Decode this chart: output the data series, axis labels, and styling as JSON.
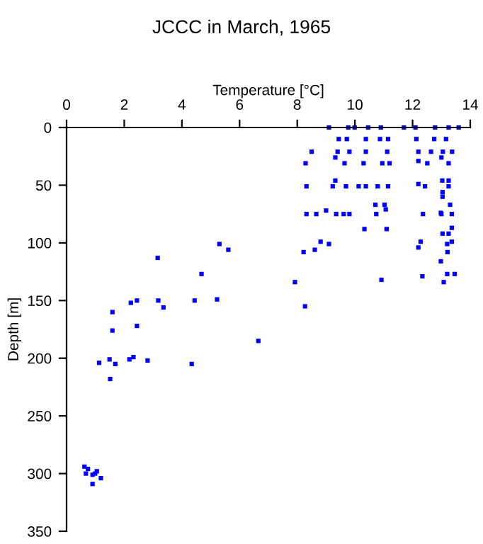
{
  "chart_data": {
    "type": "scatter",
    "title": "JCCC in March, 1965",
    "xlabel": "Temperature [°C]",
    "ylabel": "Depth [m]",
    "xlim": [
      0,
      14
    ],
    "xticks": [
      0,
      2,
      4,
      6,
      8,
      10,
      12,
      14
    ],
    "ylim": [
      350,
      0
    ],
    "yticks": [
      0,
      50,
      100,
      150,
      200,
      250,
      300,
      350
    ],
    "grid": false,
    "marker": "square",
    "series": [
      {
        "color": "#0000ff",
        "x": [
          9.1,
          9.77,
          9.99,
          10.46,
          10.9,
          11.7,
          12.1,
          12.78,
          13.25,
          13.6,
          9.44,
          9.72,
          10.38,
          10.87,
          11.15,
          12.13,
          12.75,
          13.16,
          8.5,
          9.4,
          9.81,
          10.38,
          11.12,
          12.2,
          12.64,
          13.05,
          13.37,
          9.32,
          13.0,
          8.29,
          9.64,
          10.3,
          10.95,
          11.2,
          12.2,
          12.51,
          13.25,
          9.32,
          13.03,
          13.25,
          8.32,
          9.23,
          9.69,
          10.13,
          10.38,
          10.79,
          11.15,
          12.43,
          13.25,
          12.2,
          13.04,
          13.04,
          10.71,
          13.3,
          11.03,
          11.07,
          9.0,
          12.98,
          8.32,
          8.66,
          9.35,
          9.61,
          9.81,
          10.74,
          12.36,
          13.0,
          13.36,
          10.33,
          11.1,
          13.36,
          13.04,
          13.25,
          8.81,
          9.1,
          12.28,
          13.36,
          13.2,
          12.2,
          8.61,
          8.22,
          13.21,
          12.98,
          13.2,
          13.46,
          12.34,
          10.92,
          7.92,
          13.08,
          5.3,
          5.61,
          3.16,
          4.68,
          8.27,
          1.59,
          2.23,
          2.44,
          3.18,
          3.36,
          4.44,
          5.22,
          1.59,
          2.44,
          6.65,
          1.49,
          2.18,
          2.32,
          2.81,
          1.13,
          1.69,
          4.34,
          1.51,
          0.62,
          0.74,
          0.67,
          0.9,
          1.05,
          0.99,
          1.19,
          0.9
        ],
        "values": [
          0,
          0,
          0,
          0,
          0,
          0,
          0,
          0,
          0,
          0,
          10,
          10,
          10,
          10,
          10,
          10,
          10,
          10,
          21,
          21,
          21,
          21,
          21,
          21,
          21,
          21,
          21,
          26,
          26,
          31,
          31,
          31,
          31,
          31,
          29,
          31,
          31,
          46,
          46,
          46,
          51,
          51,
          51,
          51,
          51,
          51,
          51,
          51,
          51,
          49,
          56,
          60,
          67,
          67,
          67,
          71,
          72,
          74,
          75,
          75,
          75,
          75,
          75,
          75,
          75,
          75,
          75,
          88,
          88,
          87,
          92,
          92,
          99,
          101,
          99,
          99,
          101,
          104,
          106,
          108,
          108,
          116,
          127,
          127,
          129,
          132,
          134,
          134,
          101,
          106,
          113,
          127,
          155,
          160,
          152,
          150,
          150,
          156,
          150,
          149,
          176,
          172,
          185,
          201,
          201,
          199,
          202,
          204,
          205,
          205,
          218,
          294,
          296,
          300,
          301,
          298,
          300,
          304,
          309
        ]
      }
    ]
  }
}
